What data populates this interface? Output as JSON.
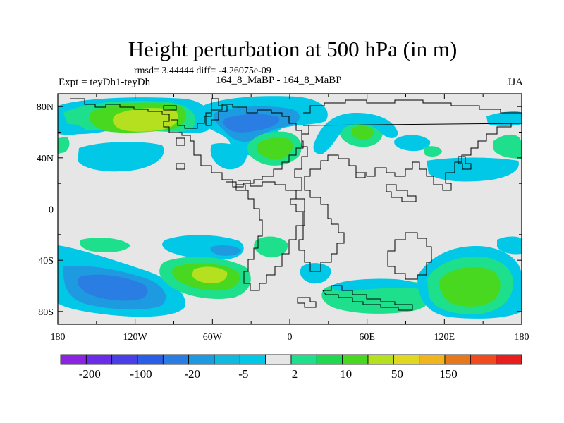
{
  "chart_data": {
    "type": "heatmap",
    "title": "Height perturbation at 500 hPa (in m)",
    "stats_line": "rmsd= 3.44444  diff= -4.26075e-09",
    "left_label": "Expt = teyDh1-teyDh",
    "center_label": "164_8_MaBP - 164_8_MaBP",
    "right_label": "JJA",
    "x_ticks": [
      "180",
      "120W",
      "60W",
      "0",
      "60E",
      "120E",
      "180"
    ],
    "y_ticks": [
      "80N",
      "40N",
      "0",
      "40S",
      "80S"
    ],
    "xlim": [
      -180,
      180
    ],
    "ylim": [
      -90,
      90
    ],
    "colorbar_labels": [
      "-200",
      "-100",
      "-20",
      "-5",
      "2",
      "10",
      "50",
      "150"
    ],
    "colorbar_colors": [
      "#8a24e0",
      "#6a2ce8",
      "#4a3ee8",
      "#2a5ee6",
      "#2a7de2",
      "#1e9ae0",
      "#10b9e0",
      "#00c8e6",
      "#e6e6e6",
      "#1ee08c",
      "#20d850",
      "#48d820",
      "#b4e020",
      "#e0d820",
      "#f0b41e",
      "#e8781e",
      "#f04a1e",
      "#e81e1e"
    ],
    "anomaly_features": [
      {
        "name": "north-pacific-high",
        "lon": -112,
        "lat": 70,
        "value": 15
      },
      {
        "name": "north-atlantic-low",
        "lon": -33,
        "lat": 60,
        "value": -25
      },
      {
        "name": "europe-high",
        "lon": -17,
        "lat": 47,
        "value": 8
      },
      {
        "name": "south-pacific-low",
        "lon": -145,
        "lat": -55,
        "value": -25
      },
      {
        "name": "south-atlantic-high",
        "lon": -60,
        "lat": -53,
        "value": 12
      },
      {
        "name": "australia-high",
        "lon": 140,
        "lat": -58,
        "value": 6
      },
      {
        "name": "south-indian-high",
        "lon": 70,
        "lat": -70,
        "value": 4
      }
    ]
  }
}
